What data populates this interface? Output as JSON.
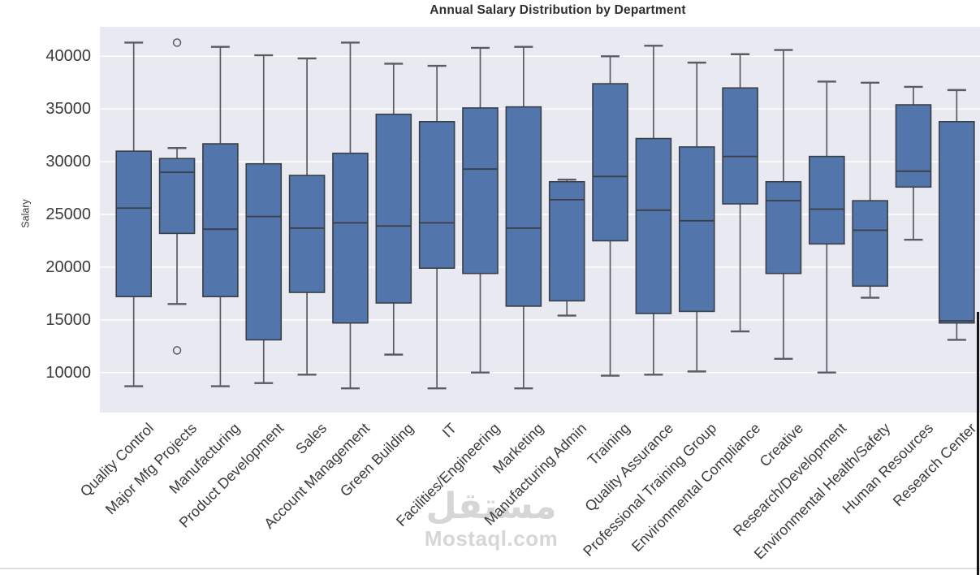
{
  "page": {
    "background": "#ffffff"
  },
  "watermark": {
    "logo_text": "مستقل",
    "site_text": "Mostaql.com"
  },
  "chart_data": {
    "type": "box",
    "title": "Annual Salary Distribution by Department",
    "ylabel": "Salary",
    "xlabel": "",
    "ylim": [
      6200,
      42800
    ],
    "yticks": [
      10000,
      15000,
      20000,
      25000,
      30000,
      35000,
      40000
    ],
    "grid": "horizontal-white-lines",
    "legend": "none",
    "plot_bg": "#e9e9f1",
    "gridline_color": "#ffffff",
    "box_fill": "#5276ab",
    "box_edge": "#3a3f45",
    "whisker_color": "#585d62",
    "text_color": "#3b3b3b",
    "categories": [
      "Quality Control",
      "Major Mfg Projects",
      "Manufacturing",
      "Product Development",
      "Sales",
      "Account Management",
      "Green Building",
      "IT",
      "Facilities/Engineering",
      "Marketing",
      "Manufacturing Admin",
      "Training",
      "Quality Assurance",
      "Professional Training Group",
      "Environmental Compliance",
      "Creative",
      "Research/Development",
      "Environmental Health/Safety",
      "Human Resources",
      "Research Center"
    ],
    "series": [
      {
        "name": "Quality Control",
        "whislo": 8700,
        "q1": 17200,
        "med": 25600,
        "q3": 31000,
        "whishi": 41300,
        "fliers": []
      },
      {
        "name": "Major Mfg Projects",
        "whislo": 16500,
        "q1": 23200,
        "med": 29000,
        "q3": 30300,
        "whishi": 31300,
        "fliers": [
          41300,
          12100
        ]
      },
      {
        "name": "Manufacturing",
        "whislo": 8700,
        "q1": 17200,
        "med": 23600,
        "q3": 31700,
        "whishi": 40900,
        "fliers": []
      },
      {
        "name": "Product Development",
        "whislo": 9000,
        "q1": 13100,
        "med": 24800,
        "q3": 29800,
        "whishi": 40100,
        "fliers": []
      },
      {
        "name": "Sales",
        "whislo": 9800,
        "q1": 17600,
        "med": 23700,
        "q3": 28700,
        "whishi": 39800,
        "fliers": []
      },
      {
        "name": "Account Management",
        "whislo": 8500,
        "q1": 14700,
        "med": 24200,
        "q3": 30800,
        "whishi": 41300,
        "fliers": []
      },
      {
        "name": "Green Building",
        "whislo": 11700,
        "q1": 16600,
        "med": 23900,
        "q3": 34500,
        "whishi": 39300,
        "fliers": []
      },
      {
        "name": "IT",
        "whislo": 8500,
        "q1": 19900,
        "med": 24200,
        "q3": 33800,
        "whishi": 39100,
        "fliers": []
      },
      {
        "name": "Facilities/Engineering",
        "whislo": 10000,
        "q1": 19400,
        "med": 29300,
        "q3": 35100,
        "whishi": 40800,
        "fliers": []
      },
      {
        "name": "Marketing",
        "whislo": 8500,
        "q1": 16300,
        "med": 23700,
        "q3": 35200,
        "whishi": 40900,
        "fliers": []
      },
      {
        "name": "Manufacturing Admin",
        "whislo": 15400,
        "q1": 16800,
        "med": 26400,
        "q3": 28100,
        "whishi": 28300,
        "fliers": []
      },
      {
        "name": "Training",
        "whislo": 9700,
        "q1": 22500,
        "med": 28600,
        "q3": 37400,
        "whishi": 40000,
        "fliers": []
      },
      {
        "name": "Quality Assurance",
        "whislo": 9800,
        "q1": 15600,
        "med": 25400,
        "q3": 32200,
        "whishi": 41000,
        "fliers": []
      },
      {
        "name": "Professional Training Group",
        "whislo": 10100,
        "q1": 15800,
        "med": 24400,
        "q3": 31400,
        "whishi": 39400,
        "fliers": []
      },
      {
        "name": "Environmental Compliance",
        "whislo": 13900,
        "q1": 26000,
        "med": 30500,
        "q3": 37000,
        "whishi": 40200,
        "fliers": []
      },
      {
        "name": "Creative",
        "whislo": 11300,
        "q1": 19400,
        "med": 26300,
        "q3": 28100,
        "whishi": 40600,
        "fliers": []
      },
      {
        "name": "Research/Development",
        "whislo": 10000,
        "q1": 22200,
        "med": 25500,
        "q3": 30500,
        "whishi": 37600,
        "fliers": []
      },
      {
        "name": "Environmental Health/Safety",
        "whislo": 17100,
        "q1": 18200,
        "med": 23500,
        "q3": 26300,
        "whishi": 37500,
        "fliers": []
      },
      {
        "name": "Human Resources",
        "whislo": 22600,
        "q1": 27600,
        "med": 29100,
        "q3": 35400,
        "whishi": 37100,
        "fliers": []
      },
      {
        "name": "Research Center",
        "whislo": 13100,
        "q1": 14700,
        "med": 14900,
        "q3": 33800,
        "whishi": 36800,
        "fliers": []
      }
    ]
  }
}
